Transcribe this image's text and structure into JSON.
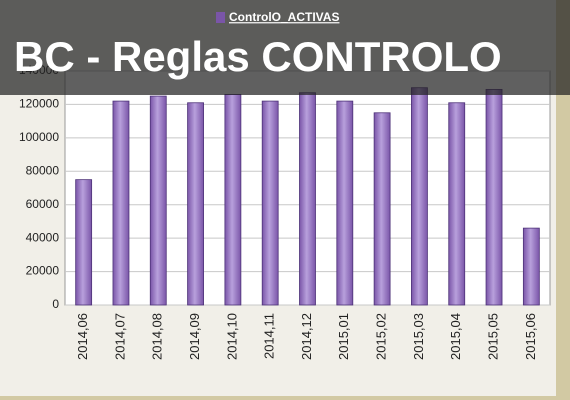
{
  "chart_data": {
    "type": "bar",
    "title": "BC - Reglas CONTROLO",
    "categories": [
      "2014,06",
      "2014,07",
      "2014,08",
      "2014,09",
      "2014,10",
      "2014,11",
      "2014,12",
      "2015,01",
      "2015,02",
      "2015,03",
      "2015,04",
      "2015,05",
      "2015,06"
    ],
    "series": [
      {
        "name": "ControlO_ACTIVAS",
        "color": "#7a55a8",
        "values": [
          75000,
          122000,
          125000,
          121000,
          126000,
          122000,
          127000,
          122000,
          115000,
          130000,
          121000,
          129000,
          46000
        ]
      }
    ],
    "ylim": [
      0,
      140000
    ],
    "yticks": [
      0,
      20000,
      40000,
      60000,
      80000,
      100000,
      120000,
      140000
    ],
    "grid": true
  }
}
